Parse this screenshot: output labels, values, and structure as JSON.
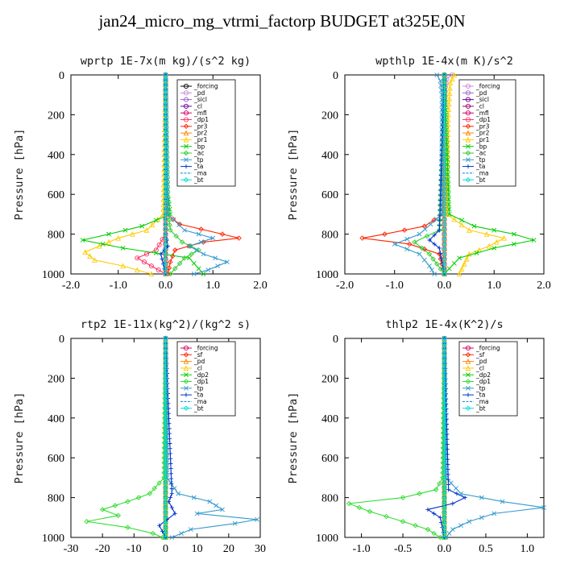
{
  "title": "jan24_micro_mg_vtrmi_factorp  BUDGET at325E,0N",
  "chart_data": [
    {
      "type": "line",
      "title": "wprtp   1E-7x(m kg)/(s^2 kg)",
      "ylabel": "Pressure [hPa]",
      "xlim": [
        -2.0,
        2.0
      ],
      "ylim": [
        1000,
        0
      ],
      "xticks": [
        "-2.0",
        "-1.0",
        "0.0",
        "1.0",
        "2.0"
      ],
      "yticks": [
        "0",
        "200",
        "400",
        "600",
        "800",
        "1000"
      ],
      "legend_position": "top-right",
      "series": [
        {
          "name": "_forcing",
          "color": "#000000",
          "marker": "o",
          "pressure": [
            0,
            200,
            400,
            600,
            800,
            1000
          ],
          "values": [
            0,
            0,
            0,
            0,
            0,
            0
          ]
        },
        {
          "name": "_pd",
          "color": "#cc88dd",
          "marker": "o",
          "pressure": [
            0,
            200,
            400,
            600,
            800,
            1000
          ],
          "values": [
            0,
            0,
            0,
            0,
            0,
            0
          ]
        },
        {
          "name": "_sicl",
          "color": "#9966cc",
          "marker": "o",
          "pressure": [
            0,
            200,
            400,
            600,
            800,
            1000
          ],
          "values": [
            0,
            0,
            0,
            0,
            0,
            0
          ]
        },
        {
          "name": "_cl",
          "color": "#660099",
          "marker": "o",
          "pressure": [
            0,
            200,
            400,
            600,
            800,
            1000
          ],
          "values": [
            0,
            0,
            0,
            0,
            0,
            0
          ]
        },
        {
          "name": "_mfl",
          "color": "#cc0066",
          "marker": "o",
          "pressure": [
            0,
            200,
            400,
            600,
            800,
            1000
          ],
          "values": [
            0,
            0,
            0,
            0,
            0,
            0
          ]
        },
        {
          "name": "_dp1",
          "color": "#ff3366",
          "marker": "o",
          "pressure": [
            0,
            800,
            880,
            920,
            960,
            1000
          ],
          "values": [
            0,
            0,
            -0.2,
            -0.6,
            -0.3,
            0
          ]
        },
        {
          "name": "_pr3",
          "color": "#ff2200",
          "marker": "d",
          "pressure": [
            0,
            700,
            750,
            800,
            820,
            840,
            880,
            940,
            1000
          ],
          "values": [
            0,
            0.02,
            0.3,
            1.2,
            1.55,
            0.8,
            0.2,
            0.1,
            0.05
          ]
        },
        {
          "name": "_pr2",
          "color": "#ff8800",
          "marker": "t",
          "pressure": [
            0,
            800,
            1000
          ],
          "values": [
            0,
            0,
            0
          ]
        },
        {
          "name": "_pr1",
          "color": "#ffcc00",
          "marker": "t",
          "pressure": [
            0,
            700,
            780,
            820,
            860,
            890,
            930,
            960,
            1000
          ],
          "values": [
            0,
            -0.05,
            -0.4,
            -1.0,
            -1.4,
            -1.7,
            -1.5,
            -0.9,
            -0.3
          ]
        },
        {
          "name": "_bp",
          "color": "#00cc00",
          "marker": "x",
          "pressure": [
            0,
            600,
            700,
            760,
            800,
            830,
            870,
            920,
            1000
          ],
          "values": [
            0,
            0.05,
            0.1,
            -0.5,
            -1.2,
            -1.75,
            -0.9,
            0.5,
            0.8
          ]
        },
        {
          "name": "_ac",
          "color": "#33cc33",
          "marker": "d",
          "pressure": [
            0,
            600,
            780,
            840,
            880,
            920,
            1000
          ],
          "values": [
            0,
            0.02,
            0.1,
            0.35,
            0.7,
            0.4,
            0.1
          ]
        },
        {
          "name": "_tp",
          "color": "#3399cc",
          "marker": "x",
          "pressure": [
            0,
            700,
            780,
            820,
            860,
            900,
            940,
            980,
            1000
          ],
          "values": [
            0,
            0.05,
            0.4,
            1.0,
            0.5,
            0.8,
            1.3,
            0.9,
            0.6
          ]
        },
        {
          "name": "_ta",
          "color": "#0033cc",
          "marker": "+",
          "pressure": [
            0,
            800,
            860,
            900,
            1000
          ],
          "values": [
            0,
            0,
            0.05,
            -0.1,
            0
          ]
        },
        {
          "name": "_ma",
          "color": "#0088cc",
          "marker": "none",
          "pressure": [
            0,
            800,
            1000
          ],
          "values": [
            0,
            0,
            0
          ]
        },
        {
          "name": "_bt",
          "color": "#00dddd",
          "marker": "d",
          "pressure": [
            0,
            800,
            1000
          ],
          "values": [
            0,
            0,
            0
          ]
        }
      ]
    },
    {
      "type": "line",
      "title": "wpthlp   1E-4x(m K)/s^2",
      "ylabel": "Pressure [hPa]",
      "xlim": [
        -2.0,
        2.0
      ],
      "ylim": [
        1000,
        0
      ],
      "xticks": [
        "-2.0",
        "-1.0",
        "0.0",
        "1.0",
        "2.0"
      ],
      "yticks": [
        "0",
        "200",
        "400",
        "600",
        "800",
        "1000"
      ],
      "legend_position": "top-right",
      "series": [
        {
          "name": "_forcing",
          "color": "#cc88dd",
          "marker": "o",
          "pressure": [
            0,
            20,
            60,
            200,
            600,
            1000
          ],
          "values": [
            0.15,
            0.05,
            0.02,
            0,
            0,
            0
          ]
        },
        {
          "name": "_pd",
          "color": "#9966cc",
          "marker": "o",
          "pressure": [
            0,
            200,
            600,
            1000
          ],
          "values": [
            0,
            0,
            0,
            0
          ]
        },
        {
          "name": "_sicl",
          "color": "#660099",
          "marker": "o",
          "pressure": [
            0,
            200,
            600,
            1000
          ],
          "values": [
            0,
            0,
            0,
            0
          ]
        },
        {
          "name": "_cl",
          "color": "#990066",
          "marker": "o",
          "pressure": [
            0,
            200,
            600,
            1000
          ],
          "values": [
            0,
            0,
            0,
            0
          ]
        },
        {
          "name": "_mfl",
          "color": "#cc0066",
          "marker": "o",
          "pressure": [
            0,
            200,
            600,
            1000
          ],
          "values": [
            0,
            0,
            0,
            0
          ]
        },
        {
          "name": "_dp1",
          "color": "#ff3366",
          "marker": "o",
          "pressure": [
            0,
            200,
            600,
            1000
          ],
          "values": [
            0,
            0,
            0,
            0
          ]
        },
        {
          "name": "_pr3",
          "color": "#ff2200",
          "marker": "d",
          "pressure": [
            0,
            700,
            760,
            800,
            820,
            850,
            900,
            1000
          ],
          "values": [
            0,
            -0.02,
            -0.4,
            -1.2,
            -1.65,
            -0.7,
            -0.1,
            0
          ]
        },
        {
          "name": "_pr2",
          "color": "#ff8800",
          "marker": "t",
          "pressure": [
            0,
            1000
          ],
          "values": [
            0,
            0
          ]
        },
        {
          "name": "_pr1",
          "color": "#ffcc00",
          "marker": "t",
          "pressure": [
            0,
            40,
            200,
            700,
            780,
            820,
            860,
            900,
            1000
          ],
          "values": [
            0.2,
            0.12,
            0.08,
            0.05,
            0.5,
            1.2,
            0.9,
            0.5,
            0.3
          ]
        },
        {
          "name": "_bp",
          "color": "#00cc00",
          "marker": "x",
          "pressure": [
            0,
            700,
            760,
            800,
            830,
            870,
            920,
            1000
          ],
          "values": [
            0,
            0.1,
            0.6,
            1.4,
            1.8,
            1.0,
            0.3,
            0
          ]
        },
        {
          "name": "_ac",
          "color": "#33cc33",
          "marker": "d",
          "pressure": [
            0,
            780,
            840,
            900,
            1000
          ],
          "values": [
            0,
            -0.1,
            -0.6,
            -0.3,
            0
          ]
        },
        {
          "name": "_tp",
          "color": "#3399cc",
          "marker": "x",
          "pressure": [
            0,
            30,
            100,
            700,
            800,
            850,
            900,
            960,
            1000
          ],
          "values": [
            -0.15,
            -0.08,
            -0.05,
            -0.05,
            -0.5,
            -1.0,
            -0.5,
            -0.3,
            -0.2
          ]
        },
        {
          "name": "_ta",
          "color": "#0033cc",
          "marker": "+",
          "pressure": [
            0,
            780,
            830,
            870,
            1000
          ],
          "values": [
            0,
            -0.1,
            -0.3,
            -0.1,
            0
          ]
        },
        {
          "name": "_ma",
          "color": "#0088cc",
          "marker": "none",
          "pressure": [
            0,
            1000
          ],
          "values": [
            0,
            0
          ]
        },
        {
          "name": "_bt",
          "color": "#00dddd",
          "marker": "d",
          "pressure": [
            0,
            1000
          ],
          "values": [
            0,
            0
          ]
        }
      ]
    },
    {
      "type": "line",
      "title": "rtp2   1E-11x(kg^2)/(kg^2 s)",
      "ylabel": "Pressure [hPa]",
      "xlim": [
        -30,
        30
      ],
      "ylim": [
        1000,
        0
      ],
      "xticks": [
        "-30",
        "-20",
        "-10",
        "0",
        "10",
        "20",
        "30"
      ],
      "yticks": [
        "0",
        "200",
        "400",
        "600",
        "800",
        "1000"
      ],
      "legend_position": "top-right",
      "series": [
        {
          "name": "_forcing",
          "color": "#cc0066",
          "marker": "o",
          "pressure": [
            0,
            500,
            1000
          ],
          "values": [
            0,
            0,
            0
          ]
        },
        {
          "name": "_sf",
          "color": "#ff2200",
          "marker": "d",
          "pressure": [
            0,
            500,
            1000
          ],
          "values": [
            0,
            0,
            0
          ]
        },
        {
          "name": "_pd",
          "color": "#ff8800",
          "marker": "t",
          "pressure": [
            0,
            500,
            1000
          ],
          "values": [
            0,
            0,
            0
          ]
        },
        {
          "name": "_cl",
          "color": "#ffcc00",
          "marker": "t",
          "pressure": [
            0,
            500,
            1000
          ],
          "values": [
            0,
            0,
            0
          ]
        },
        {
          "name": "_dp2",
          "color": "#00cc00",
          "marker": "x",
          "pressure": [
            0,
            500,
            1000
          ],
          "values": [
            0,
            0,
            0
          ]
        },
        {
          "name": "_dp1",
          "color": "#33dd33",
          "marker": "d",
          "pressure": [
            0,
            700,
            780,
            820,
            860,
            890,
            920,
            950,
            980,
            1000
          ],
          "values": [
            0,
            -0.5,
            -5,
            -12,
            -20,
            -15,
            -25,
            -12,
            -4,
            -1
          ]
        },
        {
          "name": "_tp",
          "color": "#3399cc",
          "marker": "x",
          "pressure": [
            0,
            700,
            780,
            820,
            860,
            880,
            910,
            930,
            960,
            1000
          ],
          "values": [
            0,
            0.5,
            4,
            14,
            18,
            10,
            29,
            22,
            8,
            2
          ]
        },
        {
          "name": "_ta",
          "color": "#0033cc",
          "marker": "+",
          "pressure": [
            0,
            780,
            820,
            880,
            940,
            1000
          ],
          "values": [
            0,
            2,
            1,
            3,
            -2,
            0
          ]
        },
        {
          "name": "_ma",
          "color": "#0088cc",
          "marker": "none",
          "pressure": [
            0,
            1000
          ],
          "values": [
            0,
            0
          ]
        },
        {
          "name": "_bt",
          "color": "#00dddd",
          "marker": "d",
          "pressure": [
            0,
            1000
          ],
          "values": [
            0,
            0
          ]
        }
      ]
    },
    {
      "type": "line",
      "title": "thlp2   1E-4x(K^2)/s",
      "ylabel": "Pressure [hPa]",
      "xlim": [
        -1.2,
        1.2
      ],
      "ylim": [
        1000,
        0
      ],
      "xticks": [
        "-1.0",
        "-0.5",
        "0.0",
        "0.5",
        "1.0"
      ],
      "yticks": [
        "0",
        "200",
        "400",
        "600",
        "800",
        "1000"
      ],
      "legend_position": "top-right",
      "series": [
        {
          "name": "_forcing",
          "color": "#cc0066",
          "marker": "o",
          "pressure": [
            0,
            500,
            1000
          ],
          "values": [
            0,
            0,
            0
          ]
        },
        {
          "name": "_sf",
          "color": "#ff2200",
          "marker": "d",
          "pressure": [
            0,
            500,
            1000
          ],
          "values": [
            0,
            0,
            0
          ]
        },
        {
          "name": "_pd",
          "color": "#ff8800",
          "marker": "t",
          "pressure": [
            0,
            500,
            1000
          ],
          "values": [
            0,
            0,
            0
          ]
        },
        {
          "name": "_cl",
          "color": "#ffcc00",
          "marker": "t",
          "pressure": [
            0,
            500,
            1000
          ],
          "values": [
            0,
            0,
            0
          ]
        },
        {
          "name": "_dp2",
          "color": "#00cc00",
          "marker": "x",
          "pressure": [
            0,
            500,
            1000
          ],
          "values": [
            0,
            0,
            0
          ]
        },
        {
          "name": "_dp1",
          "color": "#33dd33",
          "marker": "d",
          "pressure": [
            0,
            700,
            760,
            800,
            830,
            870,
            920,
            960,
            1000
          ],
          "values": [
            0,
            -0.02,
            -0.1,
            -0.5,
            -1.15,
            -0.9,
            -0.5,
            -0.2,
            -0.05
          ]
        },
        {
          "name": "_tp",
          "color": "#3399cc",
          "marker": "x",
          "pressure": [
            0,
            700,
            780,
            820,
            850,
            880,
            920,
            960,
            1000
          ],
          "values": [
            0,
            0.02,
            0.2,
            0.7,
            1.2,
            0.6,
            0.3,
            0.1,
            0.02
          ]
        },
        {
          "name": "_ta",
          "color": "#0033cc",
          "marker": "+",
          "pressure": [
            0,
            760,
            800,
            830,
            860,
            900,
            1000
          ],
          "values": [
            0,
            0.05,
            0.25,
            0.1,
            -0.2,
            -0.05,
            0
          ]
        },
        {
          "name": "_ma",
          "color": "#0088cc",
          "marker": "none",
          "pressure": [
            0,
            1000
          ],
          "values": [
            0,
            0
          ]
        },
        {
          "name": "_bt",
          "color": "#00dddd",
          "marker": "d",
          "pressure": [
            0,
            1000
          ],
          "values": [
            0,
            0
          ]
        }
      ]
    }
  ]
}
